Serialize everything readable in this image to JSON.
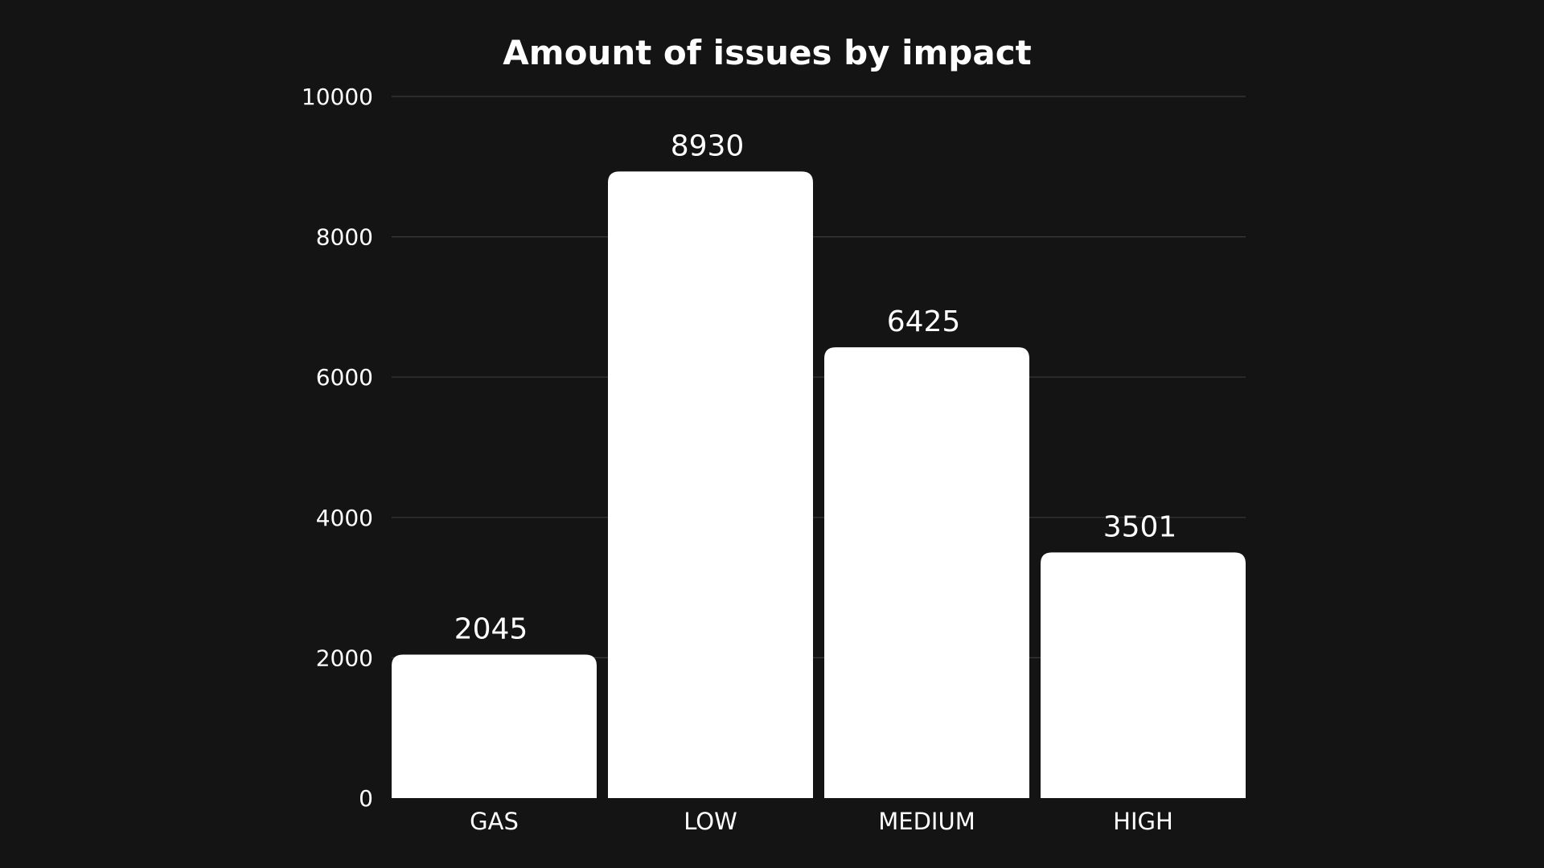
{
  "colors": {
    "background": "#141414",
    "bar": "#ffffff",
    "grid": "#3a3a3a",
    "text": "#ffffff"
  },
  "chart_data": {
    "type": "bar",
    "title": "Amount of issues by impact",
    "xlabel": "",
    "ylabel": "",
    "categories": [
      "GAS",
      "LOW",
      "MEDIUM",
      "HIGH"
    ],
    "values": [
      2045,
      8930,
      6425,
      3501
    ],
    "ylim": [
      0,
      10000
    ],
    "yticks": [
      0,
      2000,
      4000,
      6000,
      8000,
      10000
    ],
    "grid": true,
    "legend": "none"
  }
}
